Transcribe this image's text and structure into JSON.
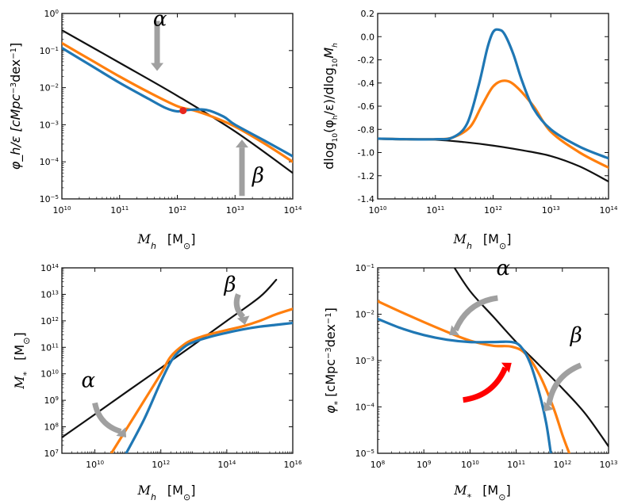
{
  "colors": {
    "black": "#111111",
    "orange": "#ff7f0e",
    "blue": "#1f77b4",
    "gray": "#a0a0a0",
    "red": "#ff0000",
    "red_dot": "#e8271e"
  },
  "chart_data": [
    {
      "id": "halo-mf",
      "type": "line",
      "logx": true,
      "logy": true,
      "xlim": [
        10,
        14
      ],
      "ylim": [
        -5,
        0
      ],
      "x_ticks": [
        10,
        11,
        12,
        13,
        14
      ],
      "y_ticks": [
        -5,
        -4,
        -3,
        -2,
        -1,
        0
      ],
      "xlabel": "M_h   [M_sun]",
      "ylabel": "φ_h/ε  [cMpc^-3 dex^-1]",
      "xlabel_parts": {
        "sym": "M",
        "sub": "h",
        "unit": "[M",
        "sun": "⊙",
        "close": "]"
      },
      "ylabel_parts": {
        "text": "φ_h/ε  [cMpc",
        "sup1": "−3",
        "mid": "dex",
        "sup2": "−1",
        "end": "]"
      },
      "series": [
        {
          "name": "black",
          "color": "black",
          "x": [
            10,
            11,
            12,
            13,
            14
          ],
          "y": [
            -0.45,
            -1.33,
            -2.22,
            -3.18,
            -4.3
          ]
        },
        {
          "name": "orange",
          "color": "orange",
          "x": [
            10,
            10.5,
            11,
            11.5,
            12,
            12.3,
            12.6,
            13,
            13.5,
            14
          ],
          "y": [
            -0.8,
            -1.25,
            -1.7,
            -2.12,
            -2.5,
            -2.62,
            -2.78,
            -3.05,
            -3.5,
            -4.0
          ]
        },
        {
          "name": "blue",
          "color": "blue",
          "x": [
            10,
            10.5,
            11,
            11.5,
            11.8,
            12,
            12.2,
            12.5,
            12.8,
            13,
            13.5,
            14
          ],
          "y": [
            -0.93,
            -1.4,
            -1.87,
            -2.3,
            -2.55,
            -2.64,
            -2.6,
            -2.6,
            -2.78,
            -3.0,
            -3.42,
            -3.85
          ]
        }
      ],
      "marker": {
        "x": 12.1,
        "y": -2.62
      },
      "annotations": [
        {
          "label": "α",
          "x": 11.7,
          "y": -0.33
        },
        {
          "label": "β",
          "x": 13.4,
          "y": -4.55
        }
      ],
      "arrows": [
        {
          "color": "gray",
          "from": [
            11.65,
            -0.2
          ],
          "to": [
            11.65,
            -1.55
          ]
        },
        {
          "color": "gray",
          "from": [
            13.12,
            -4.92
          ],
          "to": [
            13.12,
            -3.4
          ]
        }
      ]
    },
    {
      "id": "dlog-slope",
      "type": "line",
      "logx": true,
      "xlim": [
        10,
        14
      ],
      "ylim": [
        -1.4,
        0.2
      ],
      "x_ticks": [
        10,
        11,
        12,
        13,
        14
      ],
      "y_ticks": [
        0.2,
        0.0,
        -0.2,
        -0.4,
        -0.6,
        -0.8,
        -1.0,
        -1.2,
        -1.4
      ],
      "y_tick_labels": [
        "0.2",
        "0.0",
        "-0.2",
        "-0.4",
        "-0.6",
        "-0.8",
        "-1.0",
        "-1.2",
        "-1.4"
      ],
      "xlabel": "M_h   [M_sun]",
      "ylabel": "dlog10(φ_h/ε)/dlog10 M_h",
      "xlabel_parts": {
        "sym": "M",
        "sub": "h",
        "unit": "[M",
        "sun": "⊙",
        "close": "]"
      },
      "ylabel_parts": {
        "d1": "dlog",
        "s1": "10",
        "m1": "(φ",
        "s2": "h",
        "m2": "/ε)/dlog",
        "s3": "10",
        "m3": "M",
        "s4": "h"
      },
      "series": [
        {
          "name": "black",
          "color": "black",
          "x": [
            10,
            11,
            11.5,
            12,
            12.5,
            13,
            13.5,
            14
          ],
          "y": [
            -0.88,
            -0.89,
            -0.91,
            -0.94,
            -0.98,
            -1.03,
            -1.12,
            -1.25
          ]
        },
        {
          "name": "orange",
          "color": "orange",
          "x": [
            10,
            10.5,
            11,
            11.3,
            11.6,
            11.8,
            12,
            12.2,
            12.4,
            12.7,
            13,
            13.5,
            14
          ],
          "y": [
            -0.88,
            -0.885,
            -0.885,
            -0.87,
            -0.78,
            -0.6,
            -0.43,
            -0.38,
            -0.43,
            -0.6,
            -0.82,
            -1.0,
            -1.13
          ]
        },
        {
          "name": "blue",
          "color": "blue",
          "x": [
            10,
            10.5,
            11,
            11.3,
            11.55,
            11.75,
            11.9,
            12,
            12.1,
            12.2,
            12.35,
            12.5,
            12.7,
            13,
            13.5,
            14
          ],
          "y": [
            -0.88,
            -0.885,
            -0.885,
            -0.87,
            -0.75,
            -0.42,
            -0.1,
            0.04,
            0.06,
            0.02,
            -0.15,
            -0.38,
            -0.62,
            -0.8,
            -0.95,
            -1.05
          ]
        }
      ]
    },
    {
      "id": "smhm",
      "type": "line",
      "logx": true,
      "logy": true,
      "xlim": [
        9,
        16
      ],
      "ylim": [
        7,
        14
      ],
      "x_ticks": [
        10,
        12,
        14,
        16
      ],
      "y_ticks": [
        7,
        8,
        9,
        10,
        11,
        12,
        13,
        14
      ],
      "xlabel": "M_h   [M_sun]",
      "ylabel": "M_*   [M_sun]",
      "xlabel_parts": {
        "sym": "M",
        "sub": "h",
        "unit": "[M",
        "sun": "⊙",
        "close": "]"
      },
      "ylabel_parts": {
        "sym": "M",
        "sub": "*",
        "unit": "[M",
        "sun": "⊙",
        "close": "]"
      },
      "series": [
        {
          "name": "black",
          "color": "black",
          "x": [
            9,
            10,
            11,
            12,
            13,
            14,
            15,
            15.5
          ],
          "y": [
            7.6,
            8.47,
            9.35,
            10.22,
            11.1,
            12.0,
            12.9,
            13.55
          ]
        },
        {
          "name": "orange",
          "color": "orange",
          "x": [
            10.5,
            11,
            11.5,
            12,
            12.3,
            12.7,
            13,
            13.5,
            14,
            14.5,
            15,
            15.5,
            16
          ],
          "y": [
            7.0,
            8.0,
            9.0,
            10.0,
            10.65,
            11.1,
            11.3,
            11.5,
            11.65,
            11.8,
            12.0,
            12.25,
            12.45
          ]
        },
        {
          "name": "blue",
          "color": "blue",
          "x": [
            10.95,
            11.5,
            12,
            12.35,
            12.7,
            13,
            13.5,
            14,
            14.5,
            15,
            15.5,
            16
          ],
          "y": [
            7.0,
            8.3,
            9.7,
            10.55,
            11.0,
            11.2,
            11.4,
            11.55,
            11.68,
            11.78,
            11.85,
            11.92
          ]
        }
      ],
      "annotations": [
        {
          "label": "α",
          "x": 9.8,
          "y": 9.5
        },
        {
          "label": "β",
          "x": 14.1,
          "y": 13.12
        }
      ],
      "arrows": [
        {
          "color": "gray",
          "from": [
            10.0,
            8.9
          ],
          "to": [
            10.95,
            7.6
          ],
          "curve": true
        },
        {
          "color": "gray",
          "from": [
            14.35,
            13.0
          ],
          "to": [
            14.55,
            11.85
          ],
          "curve": true
        }
      ]
    },
    {
      "id": "stellar-mf",
      "type": "line",
      "logx": true,
      "logy": true,
      "xlim": [
        8,
        13
      ],
      "ylim": [
        -5,
        -1
      ],
      "x_ticks": [
        8,
        9,
        10,
        11,
        12,
        13
      ],
      "y_ticks": [
        -5,
        -4,
        -3,
        -2,
        -1
      ],
      "xlabel": "M_*   [M_sun]",
      "ylabel": "φ_*  [cMpc^-3 dex^-1]",
      "xlabel_parts": {
        "sym": "M",
        "sub": "*",
        "unit": "[M",
        "sun": "⊙",
        "close": "]"
      },
      "ylabel_parts": {
        "text": "φ",
        "sub": "*",
        "mid": "  [cMpc",
        "sup1": "−3",
        "mid2": "dex",
        "sup2": "−1",
        "end": "]"
      },
      "series": [
        {
          "name": "black",
          "color": "black",
          "x": [
            9.6,
            10,
            10.5,
            11,
            11.5,
            12,
            12.5,
            13
          ],
          "y": [
            -0.9,
            -1.5,
            -2.05,
            -2.6,
            -3.1,
            -3.6,
            -4.15,
            -4.85
          ]
        },
        {
          "name": "orange",
          "color": "orange",
          "x": [
            8,
            8.5,
            9,
            9.5,
            10,
            10.5,
            10.9,
            11.2,
            11.5,
            11.8,
            12,
            12.15
          ],
          "y": [
            -1.72,
            -1.95,
            -2.17,
            -2.38,
            -2.57,
            -2.68,
            -2.7,
            -2.85,
            -3.3,
            -4.0,
            -4.6,
            -5.0
          ]
        },
        {
          "name": "blue",
          "color": "blue",
          "x": [
            8,
            8.5,
            9,
            9.5,
            10,
            10.5,
            10.9,
            11.1,
            11.3,
            11.5,
            11.65,
            11.75
          ],
          "y": [
            -2.1,
            -2.3,
            -2.45,
            -2.55,
            -2.6,
            -2.6,
            -2.6,
            -2.7,
            -3.05,
            -3.7,
            -4.35,
            -5.0
          ]
        }
      ],
      "annotations": [
        {
          "label": "α",
          "x": 10.72,
          "y": -1.15
        },
        {
          "label": "β",
          "x": 12.3,
          "y": -2.6
        }
      ],
      "arrows": [
        {
          "color": "gray",
          "from": [
            10.6,
            -1.65
          ],
          "to": [
            9.55,
            -2.45
          ],
          "curve": true
        },
        {
          "color": "gray",
          "from": [
            12.4,
            -3.1
          ],
          "to": [
            11.6,
            -4.1
          ],
          "curve": true
        },
        {
          "color": "red",
          "from": [
            9.85,
            -3.85
          ],
          "to": [
            10.9,
            -3.05
          ],
          "curve": true
        }
      ]
    }
  ]
}
